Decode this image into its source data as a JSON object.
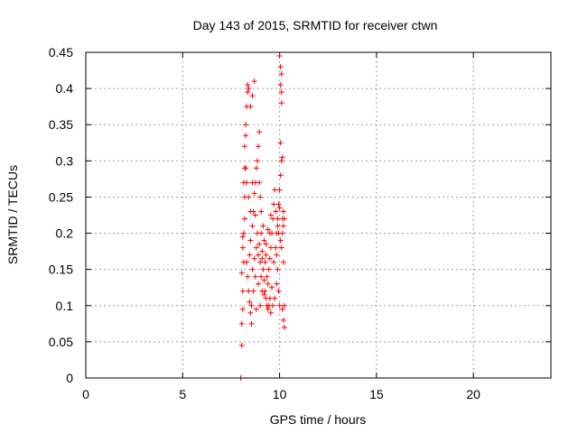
{
  "chart_data": {
    "type": "scatter",
    "title": "Day 143 of 2015, SRMTID for receiver ctwn",
    "xlabel": "GPS time / hours",
    "ylabel": "SRMTID / TECUs",
    "xlim": [
      0,
      24
    ],
    "ylim": [
      0,
      0.45
    ],
    "xticks": [
      "0",
      "5",
      "10",
      "15",
      "20"
    ],
    "yticks": [
      "0",
      "0.05",
      "0.1",
      "0.15",
      "0.2",
      "0.25",
      "0.3",
      "0.35",
      "0.4",
      "0.45"
    ],
    "grid": true,
    "marker": "+",
    "color": "#ff0000",
    "points": [
      [
        8.0,
        0.0
      ],
      [
        8.05,
        0.045
      ],
      [
        8.05,
        0.075
      ],
      [
        8.1,
        0.095
      ],
      [
        8.1,
        0.12
      ],
      [
        8.05,
        0.145
      ],
      [
        8.15,
        0.16
      ],
      [
        8.1,
        0.18
      ],
      [
        8.1,
        0.195
      ],
      [
        8.15,
        0.2
      ],
      [
        8.2,
        0.22
      ],
      [
        8.2,
        0.25
      ],
      [
        8.15,
        0.27
      ],
      [
        8.2,
        0.29
      ],
      [
        8.2,
        0.32
      ],
      [
        8.25,
        0.335
      ],
      [
        8.25,
        0.35
      ],
      [
        8.3,
        0.375
      ],
      [
        8.35,
        0.395
      ],
      [
        8.35,
        0.405
      ],
      [
        8.4,
        0.4
      ],
      [
        8.5,
        0.375
      ],
      [
        8.6,
        0.39
      ],
      [
        8.7,
        0.41
      ],
      [
        8.3,
        0.16
      ],
      [
        8.35,
        0.14
      ],
      [
        8.4,
        0.12
      ],
      [
        8.45,
        0.105
      ],
      [
        8.5,
        0.09
      ],
      [
        8.55,
        0.075
      ],
      [
        8.45,
        0.17
      ],
      [
        8.5,
        0.19
      ],
      [
        8.6,
        0.21
      ],
      [
        8.65,
        0.23
      ],
      [
        8.7,
        0.255
      ],
      [
        8.75,
        0.27
      ],
      [
        8.8,
        0.29
      ],
      [
        8.85,
        0.3
      ],
      [
        8.9,
        0.32
      ],
      [
        8.95,
        0.34
      ],
      [
        8.6,
        0.15
      ],
      [
        8.7,
        0.165
      ],
      [
        8.8,
        0.18
      ],
      [
        8.9,
        0.17
      ],
      [
        9.0,
        0.16
      ],
      [
        9.05,
        0.2
      ],
      [
        9.1,
        0.175
      ],
      [
        9.15,
        0.15
      ],
      [
        9.2,
        0.135
      ],
      [
        9.25,
        0.12
      ],
      [
        9.3,
        0.11
      ],
      [
        9.35,
        0.1
      ],
      [
        9.4,
        0.095
      ],
      [
        9.4,
        0.13
      ],
      [
        9.45,
        0.15
      ],
      [
        9.5,
        0.165
      ],
      [
        9.55,
        0.18
      ],
      [
        9.6,
        0.2
      ],
      [
        9.65,
        0.22
      ],
      [
        9.7,
        0.24
      ],
      [
        9.75,
        0.26
      ],
      [
        9.6,
        0.125
      ],
      [
        9.5,
        0.11
      ],
      [
        9.45,
        0.1
      ],
      [
        9.35,
        0.14
      ],
      [
        9.25,
        0.16
      ],
      [
        9.2,
        0.19
      ],
      [
        9.15,
        0.21
      ],
      [
        9.05,
        0.23
      ],
      [
        9.0,
        0.25
      ],
      [
        8.95,
        0.27
      ],
      [
        8.85,
        0.2
      ],
      [
        8.75,
        0.14
      ],
      [
        8.65,
        0.12
      ],
      [
        8.55,
        0.1
      ],
      [
        8.8,
        0.095
      ],
      [
        9.0,
        0.1
      ],
      [
        9.1,
        0.12
      ],
      [
        9.3,
        0.17
      ],
      [
        9.5,
        0.2
      ],
      [
        9.7,
        0.16
      ],
      [
        9.8,
        0.18
      ],
      [
        9.85,
        0.2
      ],
      [
        9.9,
        0.22
      ],
      [
        9.95,
        0.24
      ],
      [
        10.0,
        0.26
      ],
      [
        10.05,
        0.28
      ],
      [
        10.1,
        0.3
      ],
      [
        10.15,
        0.305
      ],
      [
        10.0,
        0.445
      ],
      [
        10.05,
        0.43
      ],
      [
        10.1,
        0.42
      ],
      [
        10.05,
        0.405
      ],
      [
        10.1,
        0.395
      ],
      [
        10.1,
        0.38
      ],
      [
        10.05,
        0.325
      ],
      [
        10.2,
        0.23
      ],
      [
        10.25,
        0.22
      ],
      [
        10.2,
        0.21
      ],
      [
        10.15,
        0.2
      ],
      [
        10.1,
        0.18
      ],
      [
        10.2,
        0.16
      ],
      [
        10.25,
        0.1
      ],
      [
        10.15,
        0.095
      ],
      [
        10.2,
        0.08
      ],
      [
        10.25,
        0.07
      ],
      [
        9.9,
        0.15
      ],
      [
        9.95,
        0.12
      ],
      [
        10.0,
        0.1
      ],
      [
        9.85,
        0.13
      ],
      [
        9.75,
        0.11
      ],
      [
        9.65,
        0.1
      ],
      [
        9.55,
        0.09
      ],
      [
        8.9,
        0.13
      ],
      [
        9.05,
        0.14
      ],
      [
        9.2,
        0.115
      ],
      [
        8.5,
        0.23
      ],
      [
        8.4,
        0.25
      ],
      [
        8.3,
        0.27
      ],
      [
        8.25,
        0.29
      ],
      [
        8.6,
        0.27
      ],
      [
        8.75,
        0.225
      ],
      [
        8.95,
        0.185
      ],
      [
        9.1,
        0.165
      ],
      [
        9.3,
        0.185
      ],
      [
        9.4,
        0.205
      ],
      [
        9.55,
        0.225
      ],
      [
        9.8,
        0.23
      ],
      [
        9.9,
        0.21
      ],
      [
        10.05,
        0.19
      ],
      [
        10.15,
        0.22
      ],
      [
        10.0,
        0.235
      ],
      [
        9.95,
        0.2
      ],
      [
        9.85,
        0.17
      ]
    ]
  }
}
